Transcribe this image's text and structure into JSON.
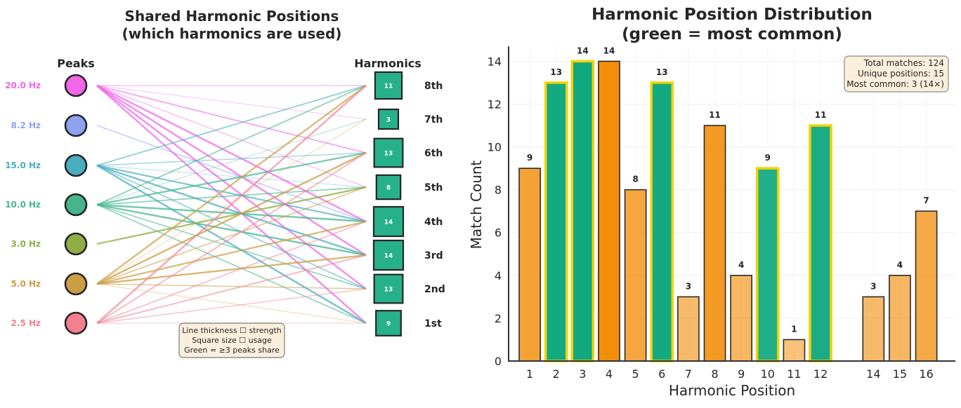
{
  "network": {
    "title_line1": "Shared Harmonic Positions",
    "title_line2": "(which harmonics are used)",
    "peaks_header": "Peaks",
    "harmonics_header": "Harmonics",
    "peaks": [
      {
        "label": "20.0 Hz",
        "color": "#f067ea"
      },
      {
        "label": "8.2 Hz",
        "color": "#8fa2f2"
      },
      {
        "label": "15.0 Hz",
        "color": "#4aaec0"
      },
      {
        "label": "10.0 Hz",
        "color": "#46b58e"
      },
      {
        "label": "3.0 Hz",
        "color": "#8fae45"
      },
      {
        "label": "5.0 Hz",
        "color": "#cc9e44"
      },
      {
        "label": "2.5 Hz",
        "color": "#f3808f"
      }
    ],
    "harmonics": [
      {
        "label": "8th",
        "count": 11
      },
      {
        "label": "7th",
        "count": 3
      },
      {
        "label": "6th",
        "count": 13
      },
      {
        "label": "5th",
        "count": 8
      },
      {
        "label": "4th",
        "count": 14
      },
      {
        "label": "3rd",
        "count": 14
      },
      {
        "label": "2nd",
        "count": 13
      },
      {
        "label": "1st",
        "count": 9
      }
    ],
    "square_color": "#27b18a",
    "legend_line1": "Line thickness ☐ strength",
    "legend_line2": "Square size ☐ usage",
    "legend_line3": "Green = ≥3 peaks share"
  },
  "chart_data": {
    "type": "bar",
    "title": "Harmonic Position Distribution",
    "subtitle": "(green = most common)",
    "xlabel": "Harmonic Position",
    "ylabel": "Match Count",
    "categories": [
      "1",
      "2",
      "3",
      "4",
      "5",
      "6",
      "7",
      "8",
      "9",
      "10",
      "11",
      "12",
      "14",
      "15",
      "16"
    ],
    "x": [
      1,
      2,
      3,
      4,
      5,
      6,
      7,
      8,
      9,
      10,
      11,
      12,
      14,
      15,
      16
    ],
    "values": [
      9,
      13,
      14,
      14,
      8,
      13,
      3,
      11,
      4,
      9,
      1,
      11,
      3,
      4,
      7
    ],
    "highlighted_green": [
      2,
      3,
      6,
      10,
      12
    ],
    "ylim": [
      0,
      14.7
    ],
    "yticks": [
      0,
      2,
      4,
      6,
      8,
      10,
      12,
      14
    ],
    "grid": true,
    "colors": {
      "orange": "#f28e0a",
      "green": "#10a97f",
      "gold": "#f5d200"
    },
    "stats": {
      "line1": "Total matches: 124",
      "line2": "Unique positions: 15",
      "line3": "Most common: 3 (14×)"
    }
  }
}
